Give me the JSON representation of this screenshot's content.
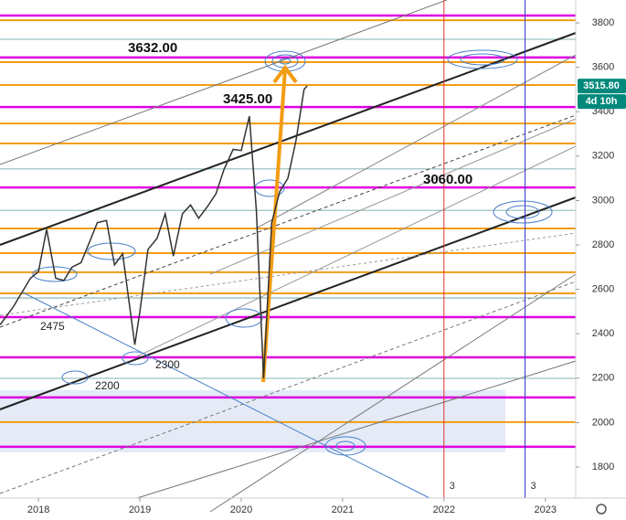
{
  "chart_data": {
    "type": "line",
    "x": [
      2017.62,
      2017.75,
      2017.92,
      2018.0,
      2018.08,
      2018.17,
      2018.25,
      2018.33,
      2018.42,
      2018.5,
      2018.58,
      2018.67,
      2018.75,
      2018.83,
      2018.95,
      2019.0,
      2019.08,
      2019.17,
      2019.25,
      2019.33,
      2019.42,
      2019.5,
      2019.58,
      2019.67,
      2019.75,
      2019.83,
      2019.92,
      2020.0,
      2020.08,
      2020.15,
      2020.22,
      2020.3,
      2020.38,
      2020.46,
      2020.54,
      2020.62,
      2020.65
    ],
    "series": [
      {
        "color": "#333333",
        "values": [
          2440,
          2520,
          2650,
          2680,
          2870,
          2650,
          2640,
          2700,
          2720,
          2810,
          2900,
          2910,
          2710,
          2760,
          2350,
          2500,
          2780,
          2830,
          2940,
          2750,
          2940,
          2980,
          2920,
          2975,
          3030,
          3140,
          3230,
          3225,
          3380,
          2950,
          2200,
          2900,
          3040,
          3100,
          3270,
          3500,
          3516
        ]
      }
    ],
    "xlim": [
      2017.62,
      2023.3
    ],
    "xticks": [
      2018,
      2019,
      2020,
      2021,
      2022,
      2023
    ],
    "ylim": [
      1660,
      3903
    ],
    "yticks": [
      1800,
      2000,
      2200,
      2400,
      2600,
      2800,
      3000,
      3200,
      3400,
      3600,
      3800
    ],
    "levels": [
      {
        "color": "#e000e0",
        "width": 2.5,
        "values": [
          3833,
          3644,
          3421,
          3059,
          2475,
          2294,
          2113,
          1891
        ]
      },
      {
        "color": "#f39c12",
        "width": 2,
        "values": [
          3812,
          3623,
          3520,
          3347,
          3257,
          2874,
          2763,
          2677,
          2582,
          2002
        ]
      },
      {
        "color": "#5a9a9a",
        "width": 0.8,
        "values": [
          3726,
          3142,
          2956,
          2561,
          2199
        ]
      }
    ],
    "markers": [
      {
        "x": 2022.0,
        "label": "3",
        "color": "#d33"
      },
      {
        "x": 2022.8,
        "label": "3",
        "color": "#33c"
      }
    ],
    "last_price": {
      "value": 3515.8,
      "label": "3515.80"
    },
    "countdown": "4d 10h",
    "annotations": [
      "3632.00",
      "3425.00",
      "3060.00",
      "2475",
      "2300",
      "2200"
    ]
  }
}
